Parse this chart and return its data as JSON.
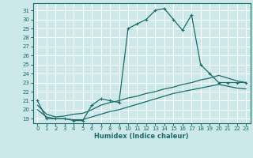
{
  "xlabel": "Humidex (Indice chaleur)",
  "ylabel": "",
  "bg_color": "#cce8e8",
  "line_color": "#1a6b6b",
  "grid_color": "#ffffff",
  "xlim": [
    -0.5,
    23.5
  ],
  "ylim": [
    18.5,
    31.8
  ],
  "xticks": [
    0,
    1,
    2,
    3,
    4,
    5,
    6,
    7,
    8,
    9,
    10,
    11,
    12,
    13,
    14,
    15,
    16,
    17,
    18,
    19,
    20,
    21,
    22,
    23
  ],
  "yticks": [
    19,
    20,
    21,
    22,
    23,
    24,
    25,
    26,
    27,
    28,
    29,
    30,
    31
  ],
  "line1_x": [
    0,
    1,
    2,
    3,
    4,
    5,
    6,
    7,
    8,
    9,
    10,
    11,
    12,
    13,
    14,
    15,
    16,
    17,
    18,
    19,
    20,
    21,
    22,
    23
  ],
  "line1_y": [
    21,
    19,
    19,
    19,
    18.8,
    18.8,
    20.5,
    21.2,
    21.0,
    20.8,
    29.0,
    29.5,
    30.0,
    31.0,
    31.2,
    30.0,
    28.8,
    30.5,
    25.0,
    24.0,
    23.0,
    23.0,
    23.0,
    23.0
  ],
  "line2_x": [
    0,
    1,
    2,
    3,
    4,
    5,
    6,
    7,
    8,
    9,
    10,
    11,
    12,
    13,
    14,
    15,
    16,
    17,
    18,
    19,
    20,
    21,
    22,
    23
  ],
  "line2_y": [
    20.5,
    19.5,
    19.2,
    19.3,
    19.5,
    19.6,
    20.0,
    20.5,
    20.8,
    21.0,
    21.3,
    21.5,
    21.8,
    22.0,
    22.3,
    22.5,
    22.8,
    23.0,
    23.3,
    23.5,
    23.8,
    23.5,
    23.2,
    23.0
  ],
  "line3_x": [
    0,
    1,
    2,
    3,
    4,
    5,
    6,
    7,
    8,
    9,
    10,
    11,
    12,
    13,
    14,
    15,
    16,
    17,
    18,
    19,
    20,
    21,
    22,
    23
  ],
  "line3_y": [
    20.0,
    19.2,
    19.0,
    19.0,
    18.9,
    18.9,
    19.2,
    19.5,
    19.8,
    20.0,
    20.3,
    20.6,
    20.9,
    21.2,
    21.5,
    21.8,
    22.0,
    22.2,
    22.4,
    22.6,
    22.8,
    22.6,
    22.4,
    22.3
  ]
}
